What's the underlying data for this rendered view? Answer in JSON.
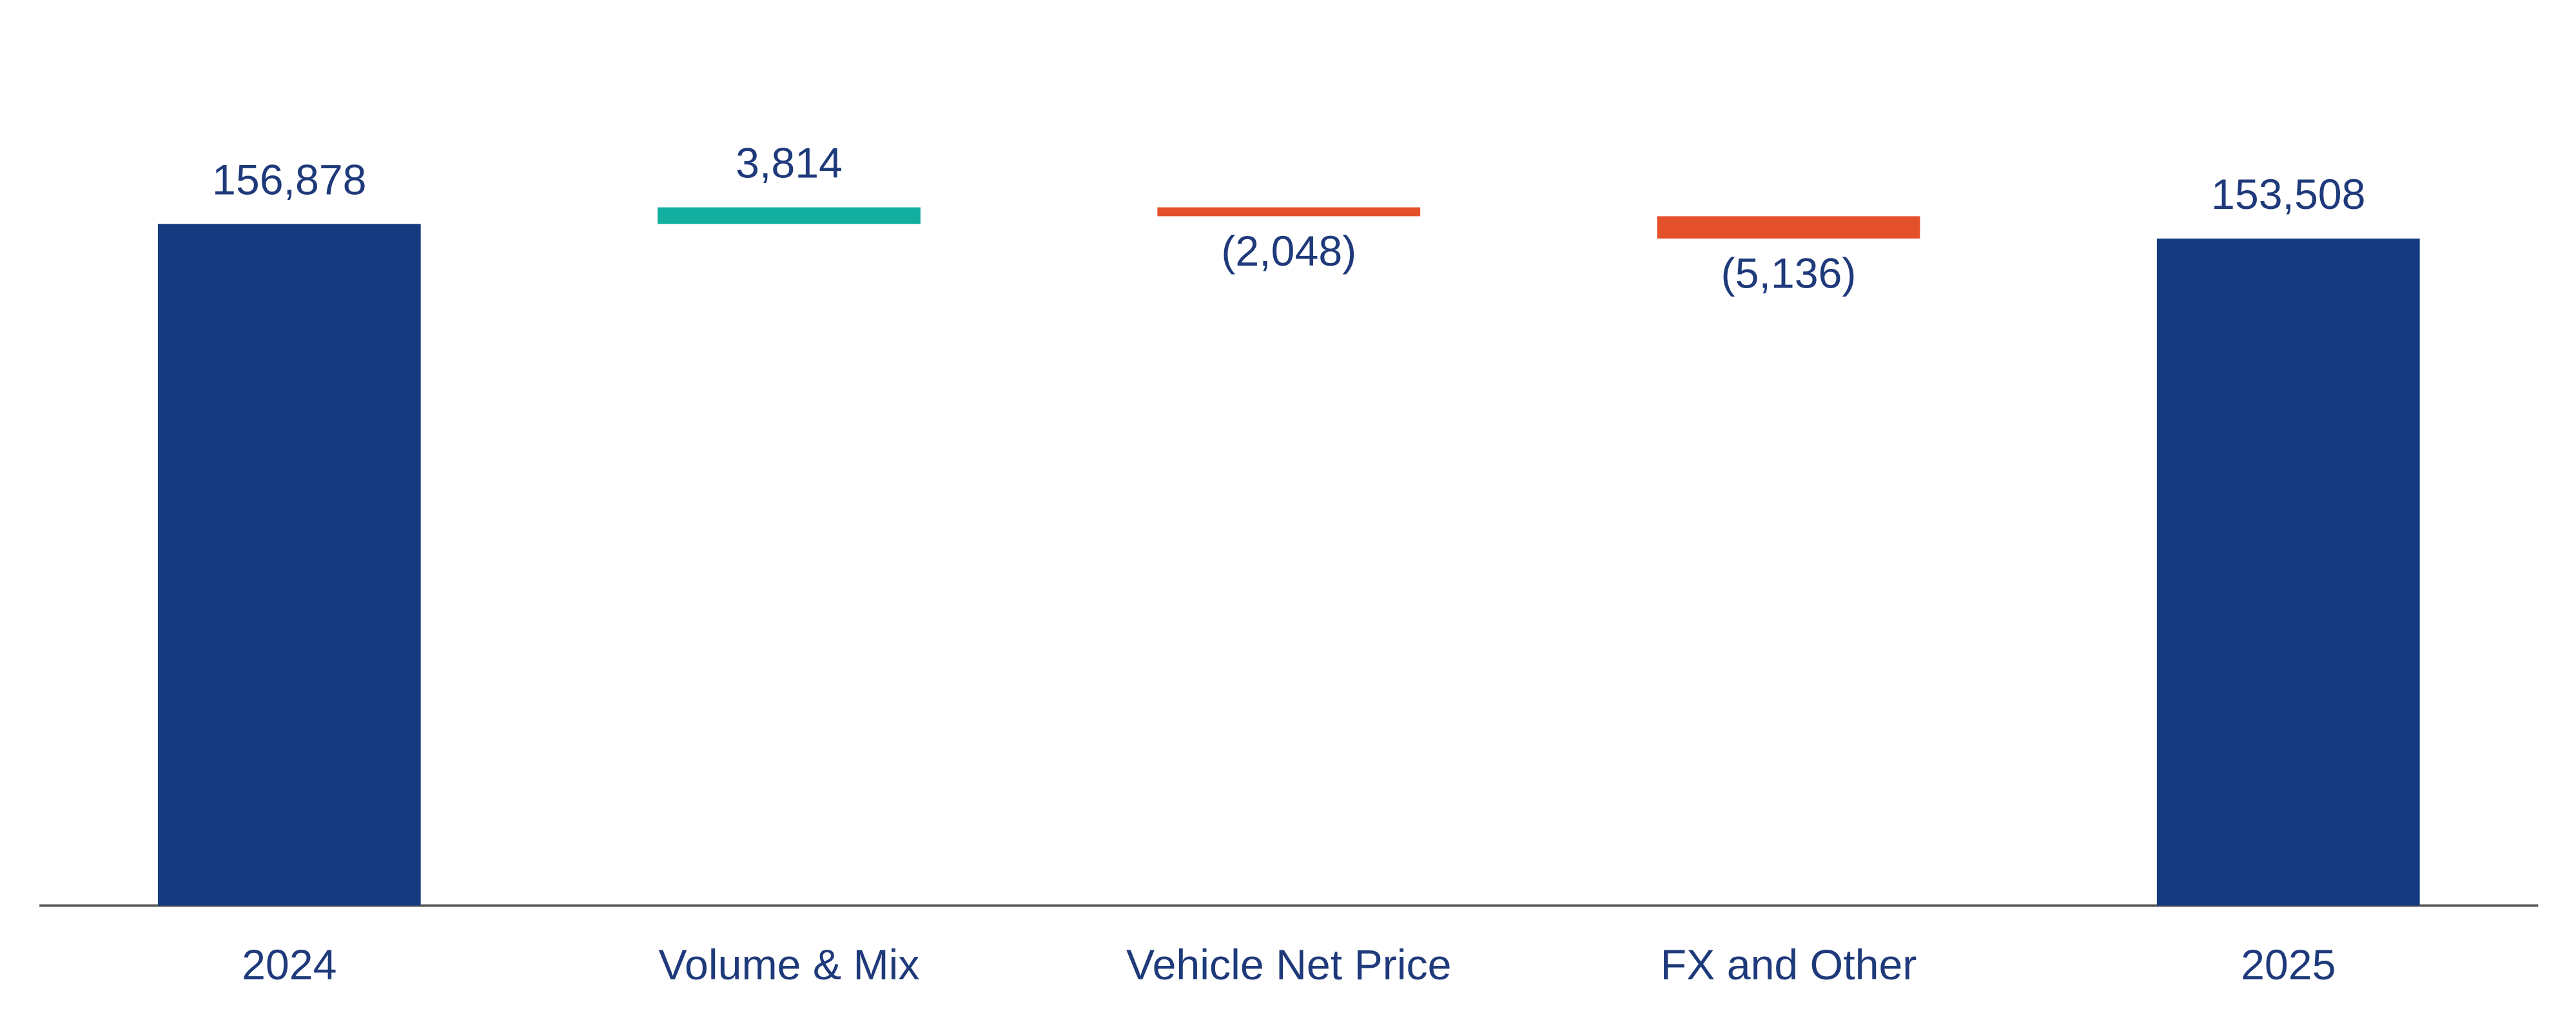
{
  "chart_data": {
    "type": "waterfall",
    "categories": [
      "2024",
      "Volume & Mix",
      "Vehicle Net Price",
      "FX and Other",
      "2025"
    ],
    "values": [
      156878,
      3814,
      -2048,
      -5136,
      153508
    ],
    "value_labels": [
      "156,878",
      "3,814",
      "(2,048)",
      "(5,136)",
      "153,508"
    ],
    "colors": [
      "#153a80",
      "#12ae9f",
      "#e4502a",
      "#e4502a",
      "#153a80"
    ],
    "ylim": [
      0,
      180000
    ]
  }
}
